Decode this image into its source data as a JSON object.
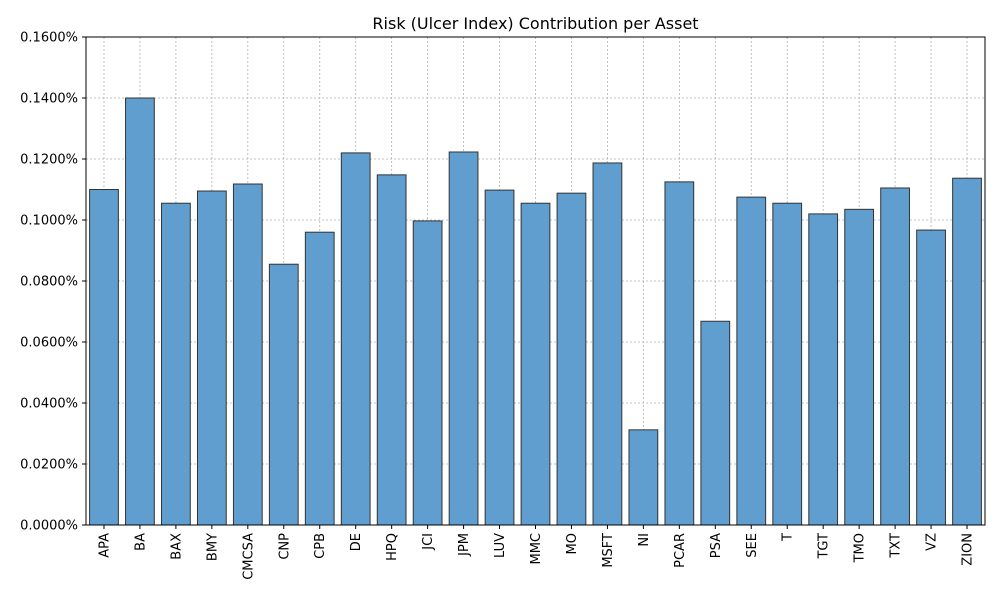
{
  "chart_data": {
    "type": "bar",
    "title": "Risk (Ulcer Index) Contribution per Asset",
    "xlabel": "",
    "ylabel": "",
    "categories": [
      "APA",
      "BA",
      "BAX",
      "BMY",
      "CMCSA",
      "CNP",
      "CPB",
      "DE",
      "HPQ",
      "JCI",
      "JPM",
      "LUV",
      "MMC",
      "MO",
      "MSFT",
      "NI",
      "PCAR",
      "PSA",
      "SEE",
      "T",
      "TGT",
      "TMO",
      "TXT",
      "VZ",
      "ZION"
    ],
    "values": [
      0.11,
      0.14,
      0.1055,
      0.1095,
      0.1118,
      0.0855,
      0.096,
      0.122,
      0.1148,
      0.0997,
      0.1223,
      0.1098,
      0.1055,
      0.1088,
      0.1187,
      0.0312,
      0.1125,
      0.0668,
      0.1075,
      0.1055,
      0.102,
      0.1035,
      0.1105,
      0.0967,
      0.1137
    ],
    "value_unit": "%",
    "ylim": [
      0,
      0.16
    ],
    "yticks": [
      0,
      0.02,
      0.04,
      0.06,
      0.08,
      0.1,
      0.12,
      0.14,
      0.16
    ],
    "ytick_labels": [
      "0.0000%",
      "0.0200%",
      "0.0400%",
      "0.0600%",
      "0.0800%",
      "0.1000%",
      "0.1200%",
      "0.1400%",
      "0.1600%"
    ],
    "grid": true,
    "legend": "none",
    "colors": {
      "bar_fill": "#5f9ecf",
      "bar_edge": "#333333",
      "grid": "#b0b0b0"
    }
  }
}
